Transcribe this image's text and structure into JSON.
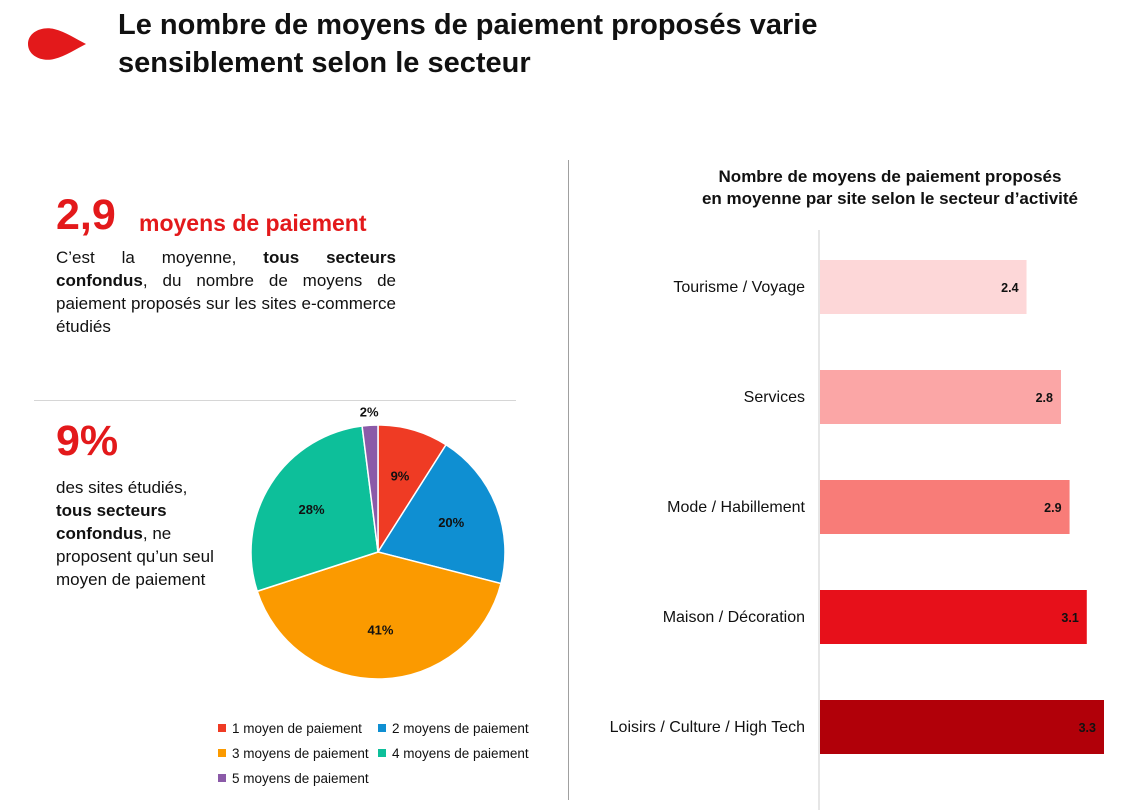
{
  "header": {
    "title_line1": "Le nombre de moyens de paiement proposés varie",
    "title_line2": "sensiblement selon le secteur"
  },
  "stat_average": {
    "value": "2,9",
    "label": "moyens de paiement",
    "desc_before": "C’est la moyenne, ",
    "desc_bold": "tous secteurs confondus",
    "desc_after": ", du nombre de moyens de paiement proposés sur les sites e-commerce étudiés"
  },
  "stat_single": {
    "value": "9%",
    "desc_before": "des sites étudiés, ",
    "desc_bold": "tous secteurs confondus",
    "desc_after": ", ne proposent qu’un seul moyen de paiement"
  },
  "colors": {
    "accent": "#e3191b",
    "pie": [
      "#ef3b24",
      "#0f8fd2",
      "#fb9a00",
      "#0dbf9a",
      "#8b5aa8"
    ],
    "bars": [
      "#fdd7d8",
      "#fba6a6",
      "#f87c78",
      "#e7101a",
      "#b10009"
    ]
  },
  "chart_data": [
    {
      "type": "pie",
      "values": [
        9,
        20,
        41,
        28,
        2
      ],
      "labels": [
        "9%",
        "20%",
        "41%",
        "28%",
        "2%"
      ],
      "series_names": [
        "1 moyen de paiement",
        "2 moyens de paiement",
        "3 moyens de paiement",
        "4 moyens de paiement",
        "5 moyens de paiement"
      ],
      "legend_position": "bottom"
    },
    {
      "type": "bar",
      "orientation": "horizontal",
      "title_line1": "Nombre de moyens de paiement proposés",
      "title_line2": "en moyenne par site selon le secteur d’activité",
      "categories": [
        "Tourisme / Voyage",
        "Services",
        "Mode / Habillement",
        "Maison / Décoration",
        "Loisirs / Culture / High Tech"
      ],
      "values": [
        2.4,
        2.8,
        2.9,
        3.1,
        3.3
      ],
      "value_labels": [
        "2.4",
        "2.8",
        "2.9",
        "3.1",
        "3.3"
      ],
      "xlim": [
        0,
        3.3
      ]
    }
  ]
}
